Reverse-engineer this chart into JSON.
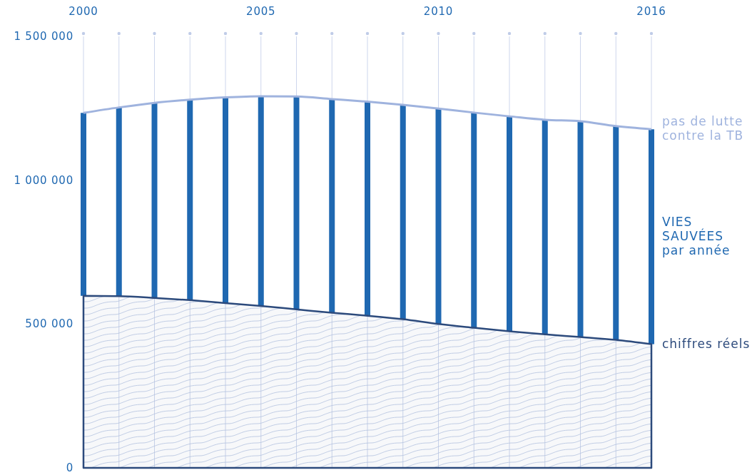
{
  "chart_data": {
    "type": "bar",
    "x": [
      2000,
      2001,
      2002,
      2003,
      2004,
      2005,
      2006,
      2007,
      2008,
      2009,
      2010,
      2011,
      2012,
      2013,
      2014,
      2015,
      2016
    ],
    "xlim": [
      2000,
      2016
    ],
    "xticks": [
      2000,
      {
        "value": 2001,
        "label": null
      },
      {
        "value": 2002,
        "label": null
      },
      {
        "value": 2003,
        "label": null
      },
      {
        "value": 2004,
        "label": null
      },
      2005,
      {
        "value": 2006,
        "label": null
      },
      {
        "value": 2007,
        "label": null
      },
      {
        "value": 2008,
        "label": null
      },
      {
        "value": 2009,
        "label": null
      },
      2010,
      {
        "value": 2011,
        "label": null
      },
      {
        "value": 2012,
        "label": null
      },
      {
        "value": 2013,
        "label": null
      },
      {
        "value": 2014,
        "label": null
      },
      {
        "value": 2015,
        "label": null
      },
      2016
    ],
    "ylim": [
      0,
      1500000
    ],
    "yticks": [
      {
        "value": 0,
        "label": "0"
      },
      {
        "value": 500000,
        "label": "500 000"
      },
      {
        "value": 1000000,
        "label": "1 000 000"
      },
      {
        "value": 1500000,
        "label": "1 500 000"
      }
    ],
    "grid": "x",
    "legend": false,
    "series": [
      {
        "name": "VIES\nSAUVÉES\npar année",
        "color": "#1f68b1",
        "base": [
          598000,
          597000,
          591000,
          583000,
          573000,
          563000,
          551000,
          539000,
          529000,
          517000,
          500000,
          487000,
          475000,
          464000,
          455000,
          445000,
          430000
        ],
        "values": [
          636000,
          656000,
          678000,
          697000,
          715000,
          729000,
          740000,
          743000,
          744000,
          745000,
          749000,
          748000,
          747000,
          746000,
          750000,
          743000,
          747000
        ]
      },
      {
        "type": "area",
        "name": "chiffres réels",
        "color": "#2c4a7c",
        "values": [
          598000,
          597000,
          591000,
          583000,
          573000,
          563000,
          551000,
          539000,
          529000,
          517000,
          500000,
          487000,
          475000,
          464000,
          455000,
          445000,
          430000
        ]
      },
      {
        "type": "line",
        "name": "pas de lutte\ncontre la TB",
        "color": "#9fb3de",
        "values": [
          1234000,
          1253000,
          1269000,
          1280000,
          1288000,
          1292000,
          1291000,
          1282000,
          1273000,
          1262000,
          1249000,
          1235000,
          1222000,
          1210000,
          1205000,
          1188000,
          1177000
        ]
      }
    ]
  }
}
